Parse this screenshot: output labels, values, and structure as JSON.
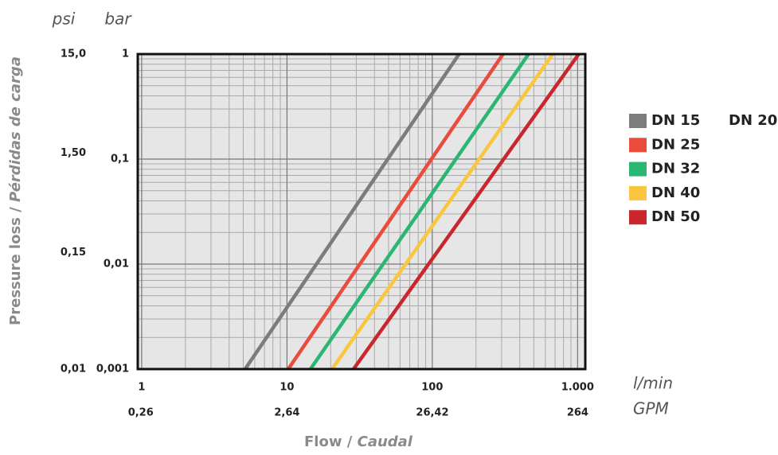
{
  "chart_data": {
    "type": "line",
    "xlabel": {
      "en": "Flow /",
      "es": "Caudal"
    },
    "ylabel": {
      "en": "Pressure loss /",
      "es": "Pérdidas de carga"
    },
    "units": {
      "y": "bar",
      "y2": "psi",
      "x": "l/min",
      "x2": "GPM"
    },
    "log_x": true,
    "log_y": true,
    "grid": true,
    "legend": "right",
    "xlim": [
      0.94,
      1130
    ],
    "xticks": [
      1,
      10,
      100,
      {
        "value": 1000,
        "label": "1.000"
      }
    ],
    "x2lim": [
      0.248,
      298
    ],
    "x2ticks": [
      {
        "value": 0.26,
        "label": "0,26"
      },
      {
        "value": 2.64,
        "label": "2,64"
      },
      {
        "value": 26.42,
        "label": "26,42"
      },
      264
    ],
    "ylim": [
      0.001,
      1
    ],
    "yticks": [
      {
        "value": 0.001,
        "label": "0,001"
      },
      {
        "value": 0.01,
        "label": "0,01"
      },
      {
        "value": 0.1,
        "label": "0,1"
      },
      1
    ],
    "y2lim": [
      0.01,
      15
    ],
    "y2ticks": [
      {
        "value": 0.01,
        "label": "0,01"
      },
      {
        "value": 0.15,
        "label": "0,15"
      },
      {
        "value": 1.5,
        "label": "1,50"
      },
      {
        "value": 15,
        "label": "15,0"
      }
    ],
    "series": [
      {
        "name": "DN 15",
        "color": "#7d7b7c",
        "x": [
          5.15,
          153
        ],
        "values": [
          0.001,
          1
        ]
      },
      {
        "name": "DN 20",
        "color": null,
        "x": [],
        "values": []
      },
      {
        "name": "DN 25",
        "color": "#e94b3c",
        "x": [
          10.2,
          307
        ],
        "values": [
          0.001,
          1
        ]
      },
      {
        "name": "DN 32",
        "color": "#2bb673",
        "x": [
          14.5,
          460
        ],
        "values": [
          0.001,
          1
        ]
      },
      {
        "name": "DN 40",
        "color": "#fbc63f",
        "x": [
          20.4,
          675
        ],
        "values": [
          0.001,
          1
        ]
      },
      {
        "name": "DN 50",
        "color": "#c9272d",
        "x": [
          28.7,
          1019
        ],
        "values": [
          0.001,
          1
        ]
      }
    ]
  }
}
